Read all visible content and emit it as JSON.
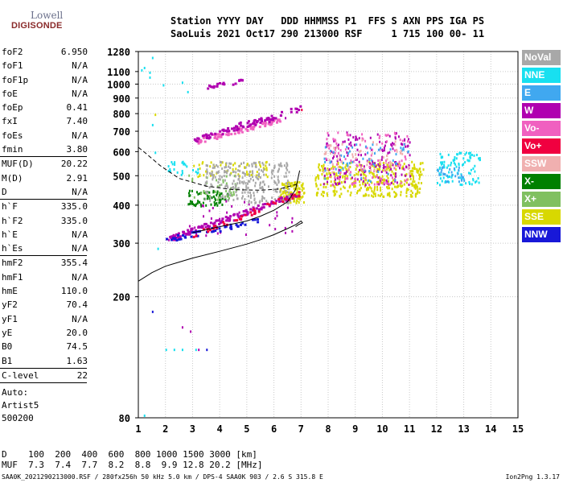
{
  "logo": {
    "brand_top": "Lowell",
    "brand_bottom": "DIGISONDE"
  },
  "header": {
    "line1": "Station YYYY DAY   DDD HHMMSS P1  FFS S AXN PPS IGA PS",
    "line2": "SaoLuis 2021 Oct17 290 213000 RSF     1 715 100 00- 11"
  },
  "params": [
    {
      "name": "foF2",
      "value": "6.950"
    },
    {
      "name": "foF1",
      "value": "N/A"
    },
    {
      "name": "foF1p",
      "value": "N/A"
    },
    {
      "name": "foE",
      "value": "N/A"
    },
    {
      "name": "foEp",
      "value": "0.41"
    },
    {
      "name": "fxI",
      "value": "7.40"
    },
    {
      "name": "foEs",
      "value": "N/A"
    },
    {
      "name": "fmin",
      "value": "3.80"
    },
    {
      "sep": true
    },
    {
      "name": "MUF(D)",
      "value": "20.22"
    },
    {
      "name": "M(D)",
      "value": "2.91"
    },
    {
      "name": "D",
      "value": "N/A"
    },
    {
      "sep": true
    },
    {
      "name": "h`F",
      "value": "335.0"
    },
    {
      "name": "h`F2",
      "value": "335.0"
    },
    {
      "name": "h`E",
      "value": "N/A"
    },
    {
      "name": "h`Es",
      "value": "N/A"
    },
    {
      "sep": true
    },
    {
      "name": "hmF2",
      "value": "355.4"
    },
    {
      "name": "hmF1",
      "value": "N/A"
    },
    {
      "name": "hmE",
      "value": "110.0"
    },
    {
      "name": "yF2",
      "value": "70.4"
    },
    {
      "name": "yF1",
      "value": "N/A"
    },
    {
      "name": "yE",
      "value": "20.0"
    },
    {
      "name": "B0",
      "value": "74.5"
    },
    {
      "name": "B1",
      "value": "1.63"
    },
    {
      "sep": true
    },
    {
      "name": "C-level",
      "value": "22"
    },
    {
      "sep": true
    }
  ],
  "auto": {
    "line1": "Auto:",
    "line2": "Artist5",
    "line3": "500200"
  },
  "legend": [
    {
      "label": "NoVal",
      "color": "#a8a8a8"
    },
    {
      "label": "NNE",
      "color": "#18e0f0"
    },
    {
      "label": "E",
      "color": "#40a8f0"
    },
    {
      "label": "W",
      "color": "#b000b0"
    },
    {
      "label": "Vo-",
      "color": "#f060c0"
    },
    {
      "label": "Vo+",
      "color": "#f00040"
    },
    {
      "label": "SSW",
      "color": "#f0b0b0"
    },
    {
      "label": "X-",
      "color": "#008000"
    },
    {
      "label": "X+",
      "color": "#80c060"
    },
    {
      "label": "SSE",
      "color": "#d8d800"
    },
    {
      "label": "NNW",
      "color": "#1818d8"
    }
  ],
  "dmuf": {
    "line1": "D    100  200  400  600  800 1000 1500 3000 [km]",
    "line2": "MUF  7.3  7.4  7.7  8.2  8.8  9.9 12.8 20.2 [MHz]"
  },
  "footer": "SAA0K_2021290213000.RSF / 280fx256h 50 kHz 5.0 km / DPS-4 SAA0K 903 / 2.6 S 315.8 E",
  "version": "Ion2Png 1.3.17",
  "chart_data": {
    "type": "scatter",
    "xlim": [
      1,
      15
    ],
    "ylim": [
      80,
      1280
    ],
    "x_ticks": [
      1,
      2,
      3,
      4,
      5,
      6,
      7,
      8,
      9,
      10,
      11,
      12,
      13,
      14,
      15
    ],
    "y_ticks": [
      80,
      200,
      300,
      400,
      500,
      600,
      700,
      800,
      900,
      1000,
      1100,
      1280
    ],
    "y_scale": "log",
    "grid": true,
    "echo_clusters": [
      {
        "color": "#d8d800",
        "x": [
          6.2,
          7.1
        ],
        "y": [
          410,
          480
        ],
        "n": 120
      },
      {
        "color": "#008000",
        "x": [
          2.8,
          4.3
        ],
        "y": [
          400,
          450
        ],
        "n": 70
      },
      {
        "color": "#b000b0",
        "x": [
          2.8,
          6.8
        ],
        "y": [
          320,
          420
        ],
        "n": 40
      },
      {
        "color": "#d8d800",
        "x": [
          7.5,
          11.5
        ],
        "y": [
          430,
          560
        ],
        "n": 380
      },
      {
        "color": "#b000b0",
        "x": [
          7.8,
          11.0
        ],
        "y": [
          470,
          700
        ],
        "n": 160
      },
      {
        "color": "#f060c0",
        "x": [
          7.8,
          11.0
        ],
        "y": [
          470,
          700
        ],
        "n": 110
      },
      {
        "color": "#40a8f0",
        "x": [
          7.8,
          11.0
        ],
        "y": [
          480,
          650
        ],
        "n": 60
      },
      {
        "color": "#f0b0b0",
        "x": [
          7.8,
          11.0
        ],
        "y": [
          500,
          660
        ],
        "n": 60
      },
      {
        "color": "#18e0f0",
        "x": [
          12.0,
          13.6
        ],
        "y": [
          470,
          600
        ],
        "n": 100
      },
      {
        "color": "#40a8f0",
        "x": [
          12.0,
          13.0
        ],
        "y": [
          480,
          540
        ],
        "n": 30
      },
      {
        "color": "#d8d800",
        "x": [
          3.0,
          5.8
        ],
        "y": [
          500,
          560
        ],
        "n": 60
      },
      {
        "color": "#18e0f0",
        "x": [
          2.0,
          3.2
        ],
        "y": [
          500,
          560
        ],
        "n": 25
      },
      {
        "color": "#80c060",
        "x": [
          2.8,
          4.6
        ],
        "y": [
          420,
          520
        ],
        "n": 40
      },
      {
        "color": "#a8a8a8",
        "x": [
          3.4,
          6.6
        ],
        "y": [
          410,
          560
        ],
        "n": 260
      }
    ],
    "echo_traces": [
      {
        "color": "#b000b0",
        "x": [
          2.0,
          6.9
        ],
        "y": [
          310,
          440
        ],
        "n": 120
      },
      {
        "color": "#1818d8",
        "x": [
          2.0,
          5.5
        ],
        "y": [
          310,
          360
        ],
        "n": 50
      },
      {
        "color": "#f00040",
        "x": [
          3.0,
          6.9
        ],
        "y": [
          320,
          440
        ],
        "n": 40
      },
      {
        "color": "#f060c0",
        "x": [
          3.0,
          6.2
        ],
        "y": [
          650,
          770
        ],
        "n": 80
      },
      {
        "color": "#b000b0",
        "x": [
          3.0,
          6.0
        ],
        "y": [
          660,
          780
        ],
        "n": 50
      },
      {
        "color": "#b000b0",
        "x": [
          4.5,
          7.0
        ],
        "y": [
          730,
          840
        ],
        "n": 30
      },
      {
        "color": "#b000b0",
        "x": [
          3.5,
          5.1
        ],
        "y": [
          980,
          1050
        ],
        "n": 20
      }
    ],
    "echo_points": [
      {
        "color": "#18e0f0",
        "x": 1.1,
        "y": 1120
      },
      {
        "color": "#18e0f0",
        "x": 1.2,
        "y": 1140
      },
      {
        "color": "#18e0f0",
        "x": 1.4,
        "y": 1060
      },
      {
        "color": "#18e0f0",
        "x": 1.5,
        "y": 1230
      },
      {
        "color": "#18e0f0",
        "x": 1.4,
        "y": 1100
      },
      {
        "color": "#18e0f0",
        "x": 1.6,
        "y": 600
      },
      {
        "color": "#18e0f0",
        "x": 1.5,
        "y": 740
      },
      {
        "color": "#18e0f0",
        "x": 1.9,
        "y": 1000
      },
      {
        "color": "#18e0f0",
        "x": 2.6,
        "y": 1020
      },
      {
        "color": "#18e0f0",
        "x": 2.8,
        "y": 950
      },
      {
        "color": "#18e0f0",
        "x": 1.2,
        "y": 82
      },
      {
        "color": "#18e0f0",
        "x": 1.7,
        "y": 290
      },
      {
        "color": "#1818d8",
        "x": 1.5,
        "y": 180
      },
      {
        "color": "#b000b0",
        "x": 2.1,
        "y": 310
      },
      {
        "color": "#d8d800",
        "x": 1.6,
        "y": 800
      },
      {
        "color": "#18e0f0",
        "x": 2.0,
        "y": 135
      },
      {
        "color": "#18e0f0",
        "x": 2.3,
        "y": 135
      },
      {
        "color": "#18e0f0",
        "x": 2.6,
        "y": 135
      },
      {
        "color": "#18e0f0",
        "x": 3.1,
        "y": 135
      },
      {
        "color": "#b000b0",
        "x": 2.9,
        "y": 155
      },
      {
        "color": "#b000b0",
        "x": 3.2,
        "y": 135
      },
      {
        "color": "#1818d8",
        "x": 3.5,
        "y": 135
      },
      {
        "color": "#b000b0",
        "x": 2.6,
        "y": 160
      },
      {
        "color": "#f00040",
        "x": 7.0,
        "y": 830
      },
      {
        "color": "#b000b0",
        "x": 6.4,
        "y": 780
      }
    ],
    "curves": [
      {
        "style": "solid",
        "name": "",
        "x": [
          1.0,
          1.5,
          2.0,
          2.5,
          3.0,
          3.5,
          4.0,
          4.5,
          5.0,
          5.5,
          6.0,
          6.5,
          6.8,
          7.0,
          7.05,
          6.9,
          6.8
        ],
        "y": [
          225,
          240,
          252,
          260,
          268,
          275,
          282,
          290,
          298,
          308,
          320,
          335,
          345,
          355,
          350,
          345,
          340
        ]
      },
      {
        "style": "solid",
        "name": "",
        "x": [
          3.0,
          4.0,
          5.0,
          5.5,
          6.0,
          6.5,
          6.8,
          6.95
        ],
        "y": [
          325,
          340,
          355,
          368,
          385,
          410,
          450,
          520
        ]
      },
      {
        "style": "dashed",
        "name": "",
        "x": [
          1.0,
          1.3,
          1.8,
          2.5,
          3.5,
          4.5,
          5.5,
          6.2,
          6.9
        ],
        "y": [
          620,
          590,
          540,
          490,
          462,
          450,
          448,
          452,
          470
        ]
      }
    ]
  }
}
